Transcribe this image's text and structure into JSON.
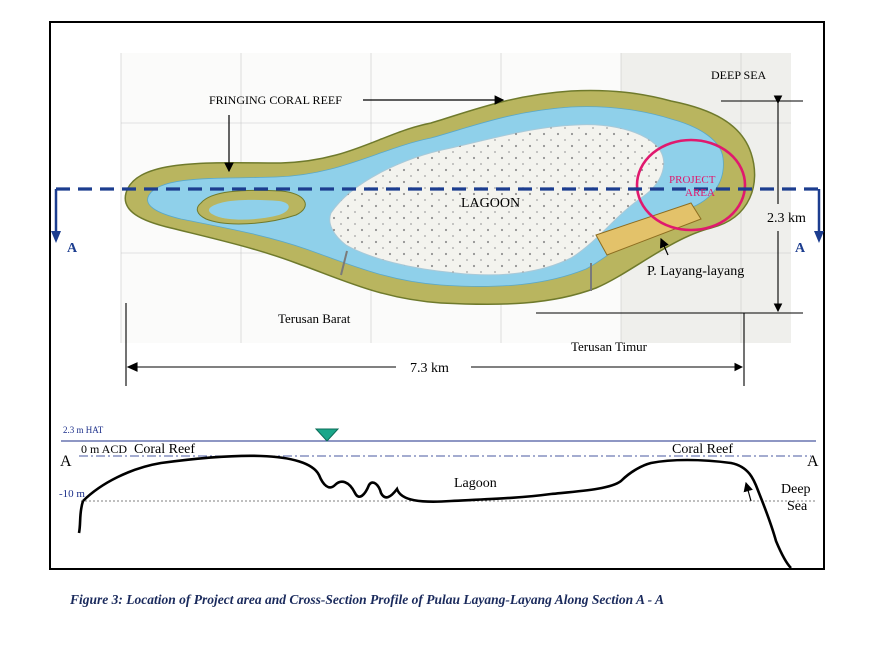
{
  "labels": {
    "fringing_coral_reef": "FRINGING CORAL REEF",
    "deep_sea_top": "DEEP SEA",
    "lagoon_map": "LAGOON",
    "project_area_1": "PROJECT",
    "project_area_2": "AREA",
    "width_dim": "2.3  km",
    "section_left": "A",
    "section_right": "A",
    "island": "P. Layang-layang",
    "terusan_barat": "Terusan Barat",
    "terusan_timur": "Terusan Timur",
    "length_dim": "7.3  km"
  },
  "profile": {
    "hat": "2.3 m HAT",
    "acd": "0 m ACD",
    "minus10": "-10 m",
    "reef_left": "Coral Reef",
    "reef_right": "Coral Reef",
    "lagoon": "Lagoon",
    "deep_sea_1": "Deep",
    "deep_sea_2": "Sea",
    "end_left": "A",
    "end_right": "A"
  },
  "caption": "Figure 3:  Location of Project area and Cross-Section Profile of Pulau Layang-Layang Along Section A - A",
  "colors": {
    "reef": "#b9b55f",
    "reef_outline": "#6f7a2c",
    "shallow_water": "#8fd0ea",
    "lagoon_sand": "#f3f3ee",
    "section_line": "#1c3d8f",
    "project_circle": "#e0196e",
    "hat_line": "#1c2f8a",
    "water_marker": "#1aa78a"
  }
}
